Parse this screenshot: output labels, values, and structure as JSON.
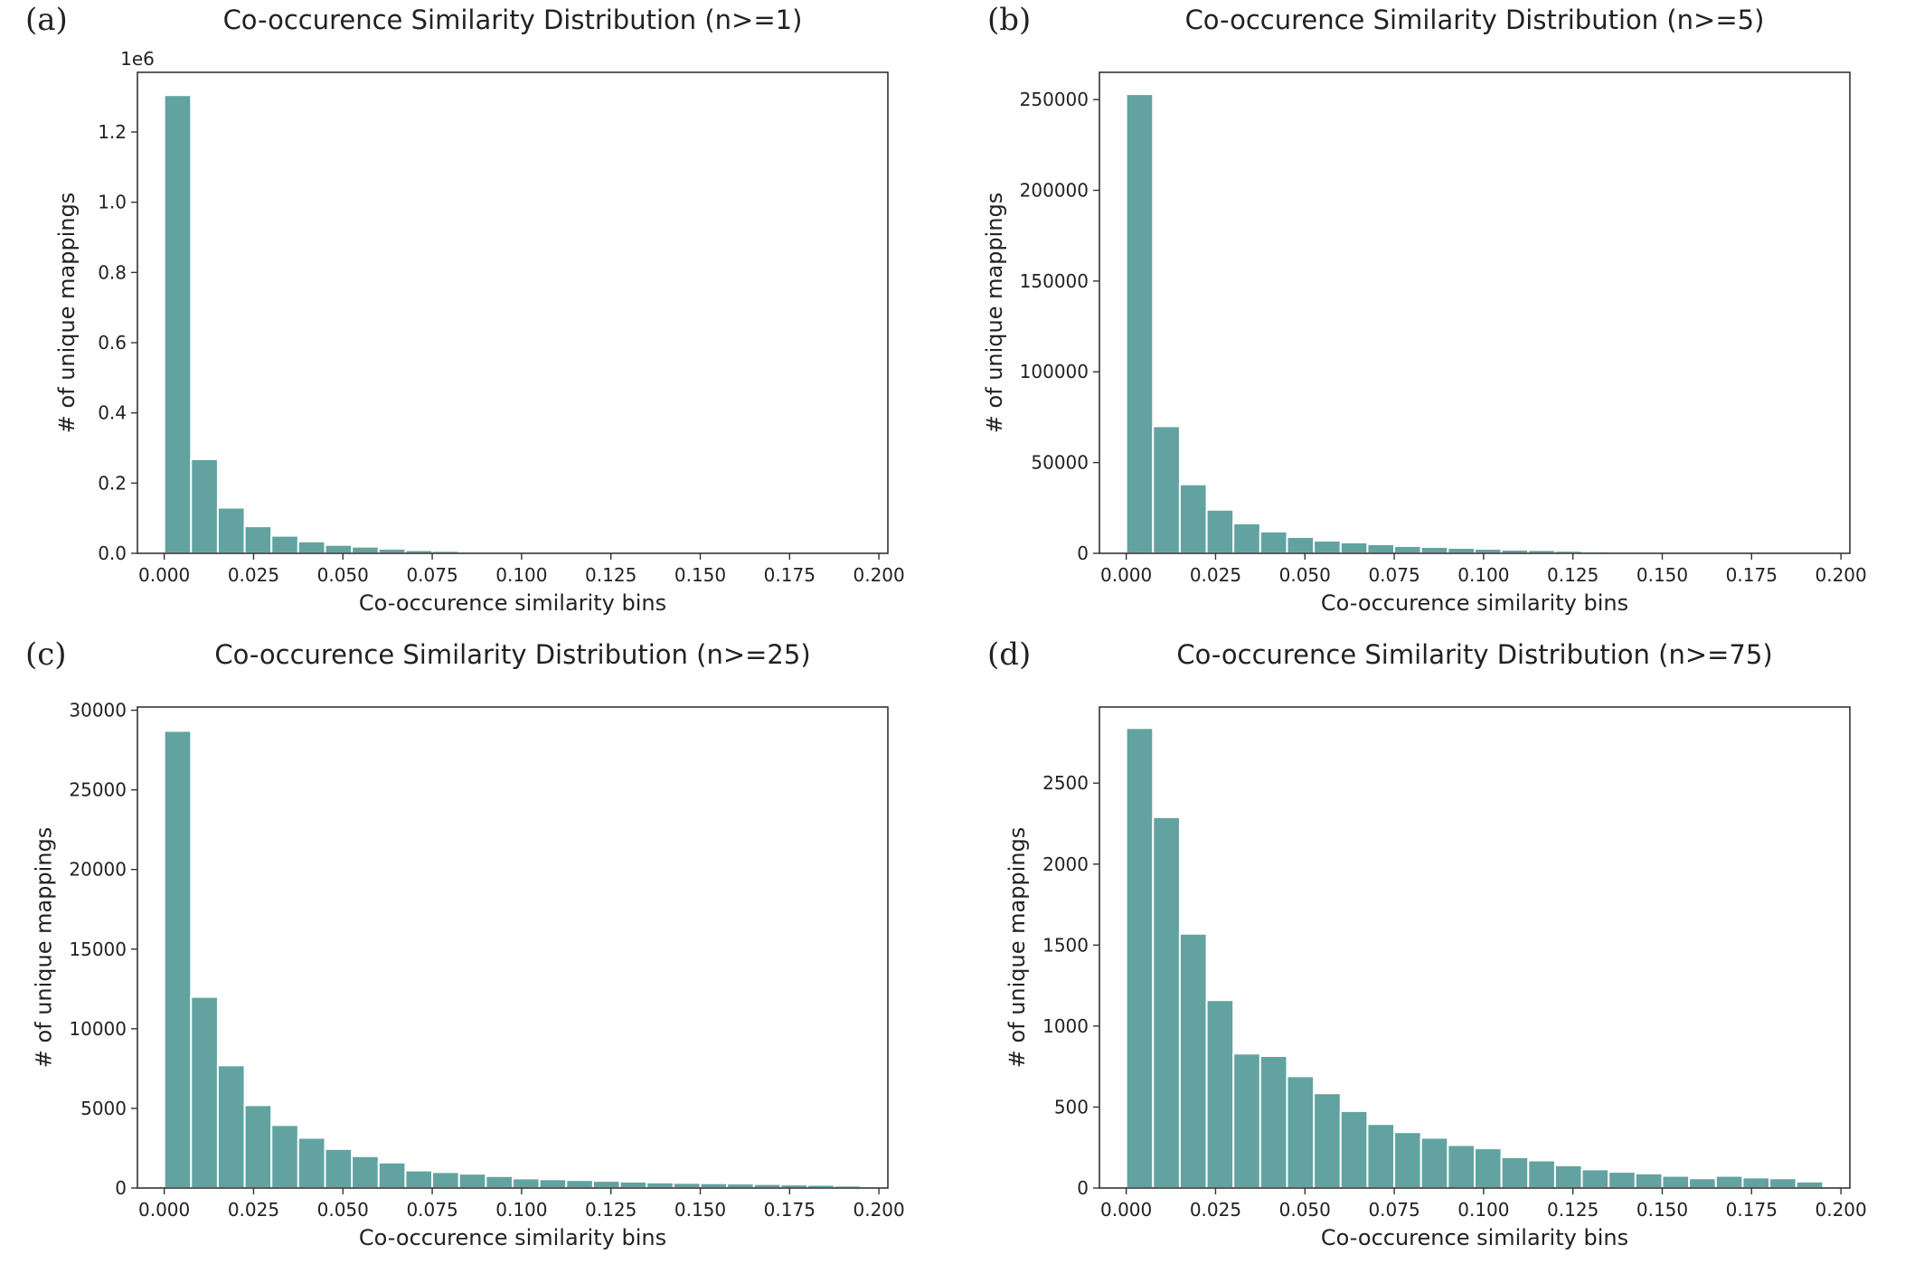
{
  "colors": {
    "bar": "#62a3a1",
    "bar_edge": "#ffffff",
    "axis": "#333333"
  },
  "chart_data": [
    {
      "type": "bar",
      "panel_label": "(a)",
      "title": "Co-occurence Similarity Distribution (n>=1)",
      "xlabel": "Co-occurence similarity bins",
      "ylabel": "# of unique mappings",
      "y_multiplier_label": "1e6",
      "bin_start": 0.0,
      "bin_width": 0.0075,
      "xlim": [
        -0.0075,
        0.2025
      ],
      "ylim": [
        0,
        1.37
      ],
      "xticks": [
        0.0,
        0.025,
        0.05,
        0.075,
        0.1,
        0.125,
        0.15,
        0.175,
        0.2
      ],
      "xtick_labels": [
        "0.000",
        "0.025",
        "0.050",
        "0.075",
        "0.100",
        "0.125",
        "0.150",
        "0.175",
        "0.200"
      ],
      "yticks": [
        0.0,
        0.2,
        0.4,
        0.6,
        0.8,
        1.0,
        1.2
      ],
      "ytick_labels": [
        "0.0",
        "0.2",
        "0.4",
        "0.6",
        "0.8",
        "1.0",
        "1.2"
      ],
      "values": [
        1.305,
        0.268,
        0.13,
        0.077,
        0.05,
        0.034,
        0.024,
        0.019,
        0.013,
        0.009,
        0.007,
        0.005,
        0.004,
        0.003,
        0.003,
        0.002,
        0.002,
        0.002,
        0.001,
        0.001,
        0.001,
        0.001,
        0.001,
        0.001,
        0.0005,
        0.0005
      ]
    },
    {
      "type": "bar",
      "panel_label": "(b)",
      "title": "Co-occurence Similarity Distribution (n>=5)",
      "xlabel": "Co-occurence similarity bins",
      "ylabel": "# of unique mappings",
      "y_multiplier_label": "",
      "bin_start": 0.0,
      "bin_width": 0.0075,
      "xlim": [
        -0.0075,
        0.2025
      ],
      "ylim": [
        0,
        265000
      ],
      "xticks": [
        0.0,
        0.025,
        0.05,
        0.075,
        0.1,
        0.125,
        0.15,
        0.175,
        0.2
      ],
      "xtick_labels": [
        "0.000",
        "0.025",
        "0.050",
        "0.075",
        "0.100",
        "0.125",
        "0.150",
        "0.175",
        "0.200"
      ],
      "yticks": [
        0,
        50000,
        100000,
        150000,
        200000,
        250000
      ],
      "ytick_labels": [
        "0",
        "50000",
        "100000",
        "150000",
        "200000",
        "250000"
      ],
      "values": [
        253000,
        70000,
        38000,
        24000,
        16500,
        12000,
        9000,
        7000,
        6000,
        5000,
        4000,
        3500,
        3000,
        2500,
        2000,
        1800,
        1400,
        1100,
        900,
        700,
        500,
        400,
        300,
        250,
        200,
        150
      ]
    },
    {
      "type": "bar",
      "panel_label": "(c)",
      "title": "Co-occurence Similarity Distribution (n>=25)",
      "xlabel": "Co-occurence similarity bins",
      "ylabel": "# of unique mappings",
      "y_multiplier_label": "",
      "bin_start": 0.0,
      "bin_width": 0.0075,
      "xlim": [
        -0.0075,
        0.2025
      ],
      "ylim": [
        0,
        30200
      ],
      "xticks": [
        0.0,
        0.025,
        0.05,
        0.075,
        0.1,
        0.125,
        0.15,
        0.175,
        0.2
      ],
      "xtick_labels": [
        "0.000",
        "0.025",
        "0.050",
        "0.075",
        "0.100",
        "0.125",
        "0.150",
        "0.175",
        "0.200"
      ],
      "yticks": [
        0,
        5000,
        10000,
        15000,
        20000,
        25000,
        30000
      ],
      "ytick_labels": [
        "0",
        "5000",
        "10000",
        "15000",
        "20000",
        "25000",
        "30000"
      ],
      "values": [
        28700,
        12000,
        7700,
        5200,
        3950,
        3150,
        2450,
        2000,
        1600,
        1100,
        1000,
        900,
        750,
        600,
        550,
        500,
        450,
        400,
        350,
        320,
        300,
        280,
        250,
        220,
        200,
        150
      ]
    },
    {
      "type": "bar",
      "panel_label": "(d)",
      "title": "Co-occurence Similarity Distribution (n>=75)",
      "xlabel": "Co-occurence similarity bins",
      "ylabel": "# of unique mappings",
      "y_multiplier_label": "",
      "bin_start": 0.0,
      "bin_width": 0.0075,
      "xlim": [
        -0.0075,
        0.2025
      ],
      "ylim": [
        0,
        2970
      ],
      "xticks": [
        0.0,
        0.025,
        0.05,
        0.075,
        0.1,
        0.125,
        0.15,
        0.175,
        0.2
      ],
      "xtick_labels": [
        "0.000",
        "0.025",
        "0.050",
        "0.075",
        "0.100",
        "0.125",
        "0.150",
        "0.175",
        "0.200"
      ],
      "yticks": [
        0,
        500,
        1000,
        1500,
        2000,
        2500
      ],
      "ytick_labels": [
        "0",
        "500",
        "1000",
        "1500",
        "2000",
        "2500"
      ],
      "values": [
        2840,
        2290,
        1570,
        1160,
        830,
        815,
        690,
        585,
        475,
        395,
        345,
        310,
        265,
        245,
        190,
        170,
        140,
        115,
        100,
        90,
        75,
        60,
        75,
        65,
        60,
        40
      ]
    }
  ]
}
